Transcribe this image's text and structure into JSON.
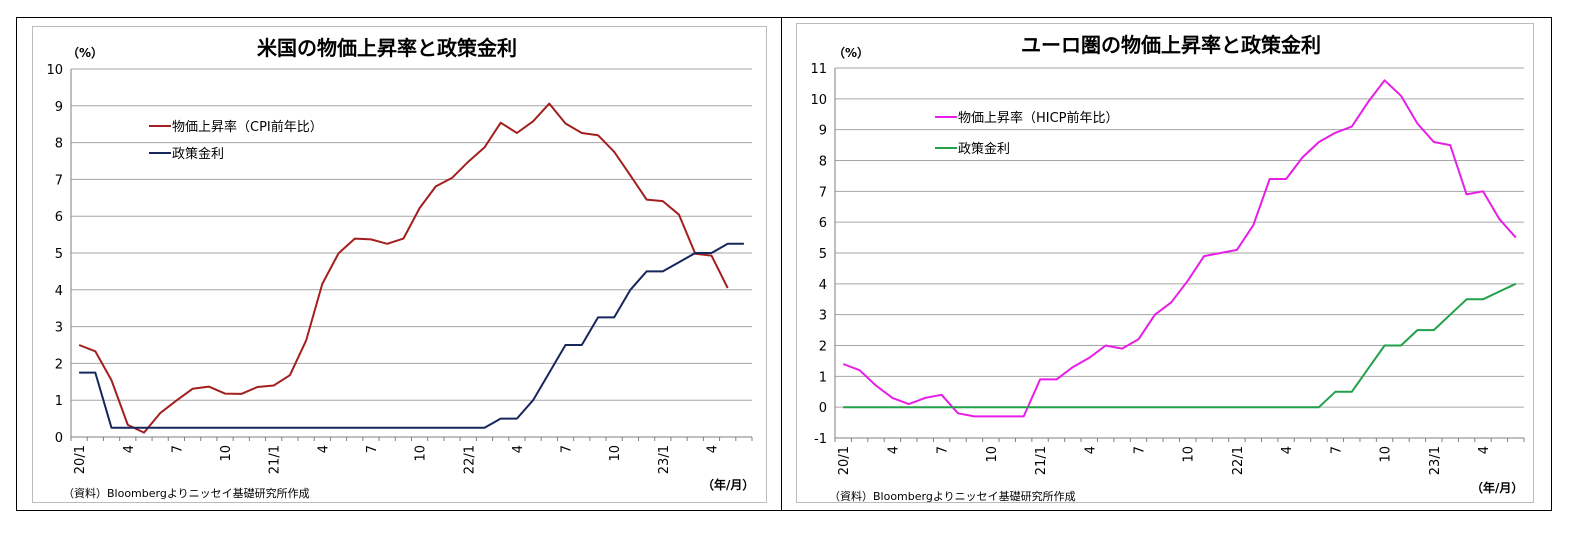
{
  "chart_data": [
    {
      "type": "line",
      "title": "米国の物価上昇率と政策金利",
      "yunit": "（%）",
      "xunit": "（年/月）",
      "source": "（資料）Bloombergよりニッセイ基礎研究所作成",
      "ylim": [
        0,
        10
      ],
      "yticks": [
        "0",
        "1",
        "2",
        "3",
        "4",
        "5",
        "6",
        "7",
        "8",
        "9",
        "10"
      ],
      "grid": true,
      "legend_position": "top-left",
      "x": [
        "20/1",
        "20/2",
        "20/3",
        "20/4",
        "20/5",
        "20/6",
        "20/7",
        "20/8",
        "20/9",
        "20/10",
        "20/11",
        "20/12",
        "21/1",
        "21/2",
        "21/3",
        "21/4",
        "21/5",
        "21/6",
        "21/7",
        "21/8",
        "21/9",
        "21/10",
        "21/11",
        "21/12",
        "22/1",
        "22/2",
        "22/3",
        "22/4",
        "22/5",
        "22/6",
        "22/7",
        "22/8",
        "22/9",
        "22/10",
        "22/11",
        "22/12",
        "23/1",
        "23/2",
        "23/3",
        "23/4",
        "23/5",
        "23/6"
      ],
      "xtick_labels": [
        {
          "index": 0,
          "label": "20/1"
        },
        {
          "index": 3,
          "label": "4"
        },
        {
          "index": 6,
          "label": "7"
        },
        {
          "index": 9,
          "label": "10"
        },
        {
          "index": 12,
          "label": "21/1"
        },
        {
          "index": 15,
          "label": "4"
        },
        {
          "index": 18,
          "label": "7"
        },
        {
          "index": 21,
          "label": "10"
        },
        {
          "index": 24,
          "label": "22/1"
        },
        {
          "index": 27,
          "label": "4"
        },
        {
          "index": 30,
          "label": "7"
        },
        {
          "index": 33,
          "label": "10"
        },
        {
          "index": 36,
          "label": "23/1"
        },
        {
          "index": 39,
          "label": "4"
        }
      ],
      "series": [
        {
          "name": "物価上昇率（CPI前年比）",
          "color": "#a31f1f",
          "values": [
            2.5,
            2.33,
            1.54,
            0.33,
            0.12,
            0.65,
            0.99,
            1.31,
            1.37,
            1.18,
            1.17,
            1.36,
            1.4,
            1.68,
            2.62,
            4.16,
            4.99,
            5.39,
            5.37,
            5.25,
            5.39,
            6.22,
            6.81,
            7.04,
            7.48,
            7.87,
            8.54,
            8.26,
            8.58,
            9.06,
            8.52,
            8.26,
            8.2,
            7.75,
            7.11,
            6.45,
            6.41,
            6.04,
            4.98,
            4.93,
            4.05,
            null
          ]
        },
        {
          "name": "政策金利",
          "color": "#17275c",
          "values": [
            1.75,
            1.75,
            0.25,
            0.25,
            0.25,
            0.25,
            0.25,
            0.25,
            0.25,
            0.25,
            0.25,
            0.25,
            0.25,
            0.25,
            0.25,
            0.25,
            0.25,
            0.25,
            0.25,
            0.25,
            0.25,
            0.25,
            0.25,
            0.25,
            0.25,
            0.25,
            0.5,
            0.5,
            1.0,
            1.75,
            2.5,
            2.5,
            3.25,
            3.25,
            4.0,
            4.5,
            4.5,
            4.75,
            5.0,
            5.0,
            5.25,
            5.25
          ]
        }
      ]
    },
    {
      "type": "line",
      "title": "ユーロ圏の物価上昇率と政策金利",
      "yunit": "（%）",
      "xunit": "（年/月）",
      "source": "（資料）Bloombergよりニッセイ基礎研究所作成",
      "ylim": [
        -1,
        11
      ],
      "yticks": [
        "-1",
        "0",
        "1",
        "2",
        "3",
        "4",
        "5",
        "6",
        "7",
        "8",
        "9",
        "10",
        "11"
      ],
      "grid": true,
      "legend_position": "top-left",
      "x": [
        "20/1",
        "20/2",
        "20/3",
        "20/4",
        "20/5",
        "20/6",
        "20/7",
        "20/8",
        "20/9",
        "20/10",
        "20/11",
        "20/12",
        "21/1",
        "21/2",
        "21/3",
        "21/4",
        "21/5",
        "21/6",
        "21/7",
        "21/8",
        "21/9",
        "21/10",
        "21/11",
        "21/12",
        "22/1",
        "22/2",
        "22/3",
        "22/4",
        "22/5",
        "22/6",
        "22/7",
        "22/8",
        "22/9",
        "22/10",
        "22/11",
        "22/12",
        "23/1",
        "23/2",
        "23/3",
        "23/4",
        "23/5",
        "23/6"
      ],
      "xtick_labels": [
        {
          "index": 0,
          "label": "20/1"
        },
        {
          "index": 3,
          "label": "4"
        },
        {
          "index": 6,
          "label": "7"
        },
        {
          "index": 9,
          "label": "10"
        },
        {
          "index": 12,
          "label": "21/1"
        },
        {
          "index": 15,
          "label": "4"
        },
        {
          "index": 18,
          "label": "7"
        },
        {
          "index": 21,
          "label": "10"
        },
        {
          "index": 24,
          "label": "22/1"
        },
        {
          "index": 27,
          "label": "4"
        },
        {
          "index": 30,
          "label": "7"
        },
        {
          "index": 33,
          "label": "10"
        },
        {
          "index": 36,
          "label": "23/1"
        },
        {
          "index": 39,
          "label": "4"
        }
      ],
      "series": [
        {
          "name": "物価上昇率（HICP前年比）",
          "color": "#e61ee6",
          "values": [
            1.4,
            1.2,
            0.7,
            0.3,
            0.1,
            0.3,
            0.4,
            -0.2,
            -0.3,
            -0.3,
            -0.3,
            -0.3,
            0.9,
            0.9,
            1.3,
            1.6,
            2.0,
            1.9,
            2.2,
            3.0,
            3.4,
            4.1,
            4.9,
            5.0,
            5.1,
            5.9,
            7.4,
            7.4,
            8.1,
            8.6,
            8.9,
            9.1,
            9.9,
            10.6,
            10.1,
            9.2,
            8.6,
            8.5,
            6.9,
            7.0,
            6.1,
            5.5
          ]
        },
        {
          "name": "政策金利",
          "color": "#22a04a",
          "values": [
            0,
            0,
            0,
            0,
            0,
            0,
            0,
            0,
            0,
            0,
            0,
            0,
            0,
            0,
            0,
            0,
            0,
            0,
            0,
            0,
            0,
            0,
            0,
            0,
            0,
            0,
            0,
            0,
            0,
            0,
            0.5,
            0.5,
            1.25,
            2.0,
            2.0,
            2.5,
            2.5,
            3.0,
            3.5,
            3.5,
            3.75,
            4.0
          ]
        }
      ]
    }
  ]
}
